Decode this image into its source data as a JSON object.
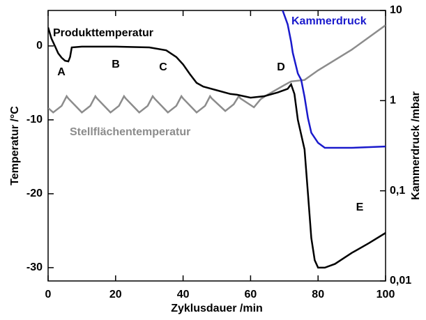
{
  "chart_data": {
    "type": "line",
    "xlabel": "Zyklusdauer /min",
    "ylabel": "Temperatur /°C",
    "y2label": "Kammerdruck /mbar",
    "xlim": [
      0,
      100
    ],
    "xticks": [
      0,
      20,
      40,
      60,
      80,
      100
    ],
    "ylim": [
      -31.8,
      4.8
    ],
    "yticks": [
      0,
      -10,
      -20,
      -30
    ],
    "y2lim": [
      0.01,
      10
    ],
    "y2log": true,
    "y2ticks": [
      10,
      1,
      {
        "value": 0.1,
        "label": "0,1"
      },
      {
        "value": 0.01,
        "label": "0,01"
      }
    ],
    "series": [
      {
        "name": "Produkttemperatur",
        "color": "#000000",
        "x": [
          0,
          1,
          2,
          3,
          4,
          5,
          6,
          6.5,
          7,
          10,
          20,
          30,
          35,
          38,
          40,
          42,
          44,
          46,
          50,
          54,
          56,
          60,
          64,
          68,
          71,
          72,
          73,
          74,
          76,
          77,
          78,
          79,
          80,
          82,
          85,
          90,
          95,
          100
        ],
        "values": [
          2.5,
          1,
          0,
          -1,
          -1.6,
          -2,
          -2.1,
          -1.5,
          -0.2,
          -0.1,
          -0.1,
          -0.2,
          -0.6,
          -1.5,
          -2.5,
          -3.8,
          -5,
          -5.5,
          -6,
          -6.5,
          -6.6,
          -7,
          -6.8,
          -6.3,
          -5.8,
          -5.2,
          -6.5,
          -10,
          -14,
          -20,
          -26,
          -29,
          -30,
          -30,
          -29.5,
          -28,
          -26.7,
          -25.3
        ]
      },
      {
        "name": "Stellflächentemperatur",
        "color": "#8c8c8c",
        "x": [
          0,
          1.5,
          4,
          5.5,
          6,
          10,
          12.5,
          14,
          14.5,
          18.5,
          21,
          22.5,
          23,
          27,
          29.5,
          31,
          31.5,
          35.5,
          38,
          39.5,
          40,
          44,
          46.5,
          48,
          48.5,
          52.5,
          55,
          56.5,
          57,
          61,
          63,
          65,
          70,
          72,
          76,
          80,
          90,
          100
        ],
        "values": [
          -8.4,
          -9,
          -8.1,
          -6.8,
          -7.1,
          -9,
          -8.1,
          -6.8,
          -7.1,
          -9,
          -8.1,
          -6.8,
          -7.1,
          -9,
          -8.1,
          -6.8,
          -7.1,
          -9,
          -8.1,
          -6.8,
          -7.1,
          -9,
          -8.1,
          -6.8,
          -7.1,
          -8.8,
          -7.9,
          -6.8,
          -7.1,
          -8.3,
          -7.2,
          -6.6,
          -5.3,
          -4.8,
          -4.6,
          -3.3,
          -0.5,
          2.8
        ]
      },
      {
        "name": "Kammerdruck",
        "color": "#1a1acc",
        "axis": "y2",
        "x": [
          69.5,
          71,
          72,
          72.5,
          74,
          75,
          76,
          77,
          78,
          80,
          82,
          90,
          100
        ],
        "values": [
          10,
          7,
          4.5,
          3.4,
          2,
          1.7,
          1.1,
          0.64,
          0.44,
          0.34,
          0.3,
          0.3,
          0.31
        ]
      }
    ],
    "annotations": [
      "A",
      "B",
      "C",
      "D",
      "E"
    ]
  }
}
